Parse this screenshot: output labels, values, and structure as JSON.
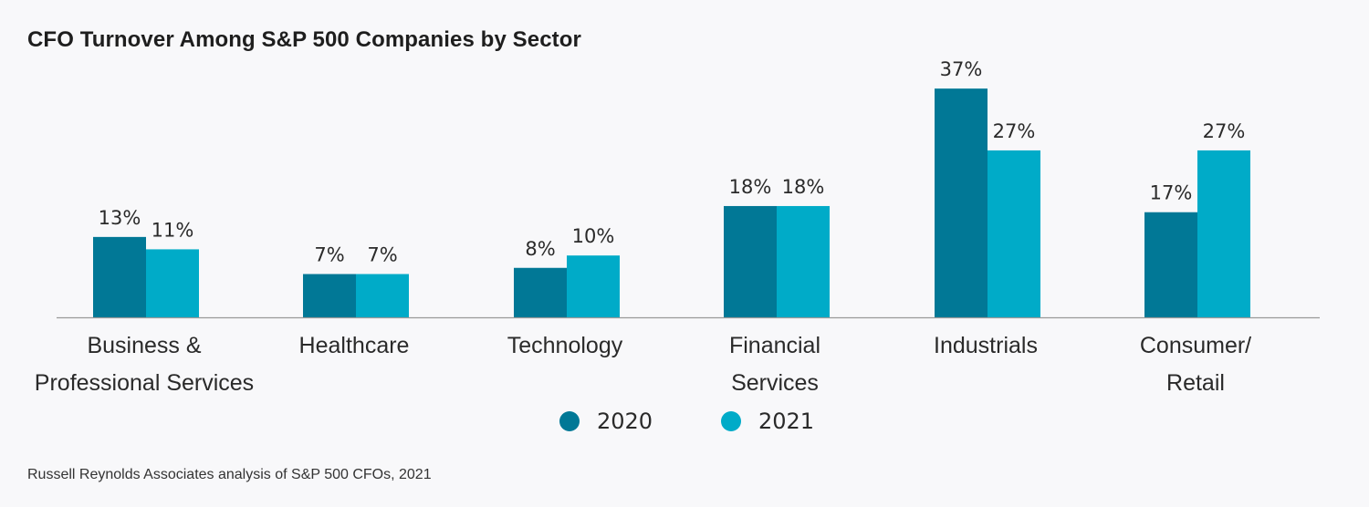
{
  "chart_data": {
    "type": "bar",
    "title": "CFO Turnover Among S&P 500 Companies by Sector",
    "xlabel": "",
    "ylabel": "",
    "ylim": [
      0,
      40
    ],
    "grid": false,
    "legend_position": "bottom-center",
    "categories": [
      [
        "Business &",
        "Professional Services"
      ],
      [
        "Healthcare"
      ],
      [
        "Technology"
      ],
      [
        "Financial",
        "Services"
      ],
      [
        "Industrials"
      ],
      [
        "Consumer/",
        "Retail"
      ]
    ],
    "series": [
      {
        "name": "2020",
        "color": "#017896",
        "values": [
          13,
          7,
          8,
          18,
          37,
          17
        ],
        "labels": [
          "13%",
          "7%",
          "8%",
          "18%",
          "37%",
          "17%"
        ]
      },
      {
        "name": "2021",
        "color": "#00abc8",
        "values": [
          11,
          7,
          10,
          18,
          27,
          27
        ],
        "labels": [
          "11%",
          "7%",
          "10%",
          "18%",
          "27%",
          "27%"
        ]
      }
    ],
    "source": "Russell Reynolds Associates analysis of S&P 500 CFOs, 2021"
  },
  "colors": {
    "background": "#f8f8fa",
    "axis": "#999999",
    "text": "#2a2a2a"
  }
}
